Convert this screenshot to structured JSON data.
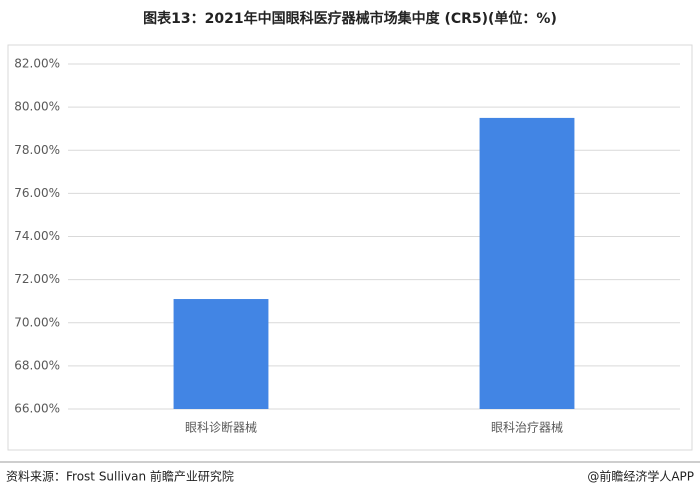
{
  "chart_data": {
    "type": "bar",
    "title": "图表13：2021年中国眼科医疗器械市场集中度 (CR5)(单位：%)",
    "categories": [
      "眼科诊断器械",
      "眼科治疗器械"
    ],
    "values": [
      71.1,
      79.5
    ],
    "color": "#4285e4",
    "ylim": [
      66,
      82
    ],
    "yticks": [
      {
        "value": 66,
        "label": "66.00%"
      },
      {
        "value": 68,
        "label": "68.00%"
      },
      {
        "value": 70,
        "label": "70.00%"
      },
      {
        "value": 72,
        "label": "72.00%"
      },
      {
        "value": 74,
        "label": "74.00%"
      },
      {
        "value": 76,
        "label": "76.00%"
      },
      {
        "value": 78,
        "label": "78.00%"
      },
      {
        "value": 80,
        "label": "80.00%"
      },
      {
        "value": 82,
        "label": "82.00%"
      }
    ],
    "grid": true,
    "source": "资料来源：Frost Sullivan 前瞻产业研究院",
    "credit": "@前瞻经济学人APP"
  }
}
